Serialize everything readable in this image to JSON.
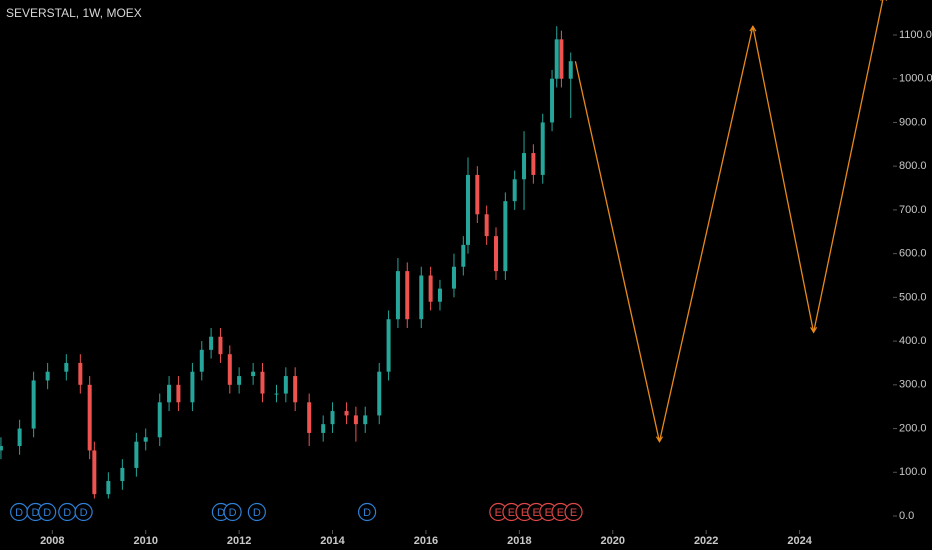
{
  "chart_data": {
    "type": "candlestick",
    "title": "SEVERSTAL, 1W, MOEX",
    "xlim": [
      2006.88,
      2026.0
    ],
    "ylim": [
      -32,
      1180
    ],
    "xticks": [
      2008,
      2010,
      2012,
      2014,
      2016,
      2018,
      2020,
      2022,
      2024
    ],
    "yticks": [
      {
        "value": 0,
        "label": "0.0"
      },
      {
        "value": 100,
        "label": "100.0"
      },
      {
        "value": 200,
        "label": "200.0"
      },
      {
        "value": 300,
        "label": "300.0"
      },
      {
        "value": 400,
        "label": "400.0"
      },
      {
        "value": 500,
        "label": "500.0"
      },
      {
        "value": 600,
        "label": "600.0"
      },
      {
        "value": 700,
        "label": "700.0"
      },
      {
        "value": 800,
        "label": "800.0"
      },
      {
        "value": 900,
        "label": "900.0"
      },
      {
        "value": 1000,
        "label": "1000.0"
      },
      {
        "value": 1100,
        "label": "1100.0"
      }
    ],
    "up_color": "#26a69a",
    "down_color": "#ef5350",
    "candles": {
      "x": [
        2006.9,
        2007.3,
        2007.6,
        2007.9,
        2008.3,
        2008.6,
        2008.8,
        2008.9,
        2009.2,
        2009.5,
        2009.8,
        2010.0,
        2010.3,
        2010.5,
        2010.7,
        2011.0,
        2011.2,
        2011.4,
        2011.6,
        2011.8,
        2012.0,
        2012.3,
        2012.5,
        2012.8,
        2013.0,
        2013.2,
        2013.5,
        2013.8,
        2014.0,
        2014.3,
        2014.5,
        2014.7,
        2015.0,
        2015.2,
        2015.4,
        2015.6,
        2015.9,
        2016.1,
        2016.3,
        2016.6,
        2016.8,
        2016.9,
        2017.1,
        2017.3,
        2017.5,
        2017.7,
        2017.9,
        2018.1,
        2018.3,
        2018.5,
        2018.7,
        2018.8,
        2018.9,
        2019.1
      ],
      "open": [
        150,
        160,
        200,
        310,
        330,
        350,
        300,
        150,
        50,
        80,
        110,
        170,
        180,
        260,
        300,
        260,
        330,
        380,
        410,
        370,
        300,
        320,
        330,
        280,
        280,
        320,
        260,
        190,
        210,
        240,
        230,
        210,
        230,
        330,
        450,
        560,
        450,
        550,
        490,
        520,
        570,
        620,
        780,
        690,
        640,
        560,
        720,
        770,
        830,
        780,
        900,
        1000,
        1090,
        1000
      ],
      "high": [
        180,
        220,
        330,
        350,
        370,
        370,
        320,
        170,
        100,
        130,
        190,
        200,
        280,
        320,
        320,
        350,
        400,
        430,
        430,
        390,
        340,
        350,
        350,
        300,
        340,
        340,
        280,
        230,
        260,
        260,
        250,
        250,
        350,
        470,
        590,
        580,
        570,
        570,
        540,
        600,
        640,
        820,
        800,
        710,
        660,
        740,
        790,
        880,
        850,
        920,
        1020,
        1120,
        1110,
        1060
      ],
      "low": [
        130,
        140,
        180,
        290,
        310,
        280,
        130,
        40,
        40,
        60,
        90,
        150,
        160,
        240,
        240,
        240,
        310,
        360,
        350,
        280,
        280,
        300,
        260,
        260,
        260,
        240,
        160,
        170,
        190,
        210,
        170,
        190,
        210,
        310,
        430,
        430,
        430,
        470,
        470,
        500,
        550,
        600,
        670,
        620,
        540,
        540,
        700,
        700,
        760,
        760,
        880,
        980,
        980,
        910
      ],
      "close": [
        160,
        200,
        310,
        330,
        350,
        300,
        150,
        50,
        80,
        110,
        170,
        180,
        260,
        300,
        260,
        330,
        380,
        410,
        370,
        300,
        320,
        330,
        280,
        280,
        320,
        260,
        190,
        210,
        240,
        230,
        210,
        230,
        330,
        450,
        560,
        450,
        550,
        490,
        520,
        570,
        620,
        780,
        690,
        640,
        560,
        720,
        770,
        830,
        780,
        900,
        1000,
        1090,
        1000,
        1040
      ]
    },
    "projection": {
      "color": "#e8891a",
      "x": [
        2019.2,
        2021.0,
        2023.0,
        2024.3,
        2025.8
      ],
      "values": [
        1040,
        170,
        1120,
        420,
        1190
      ]
    },
    "events": [
      {
        "x": 2007.29,
        "label": "D",
        "color": "#2f7fd6"
      },
      {
        "x": 2007.64,
        "label": "D",
        "color": "#2f7fd6"
      },
      {
        "x": 2007.89,
        "label": "D",
        "color": "#2f7fd6"
      },
      {
        "x": 2008.32,
        "label": "D",
        "color": "#2f7fd6"
      },
      {
        "x": 2008.67,
        "label": "D",
        "color": "#2f7fd6"
      },
      {
        "x": 2011.61,
        "label": "D",
        "color": "#2f7fd6"
      },
      {
        "x": 2011.86,
        "label": "D",
        "color": "#2f7fd6"
      },
      {
        "x": 2012.38,
        "label": "D",
        "color": "#2f7fd6"
      },
      {
        "x": 2014.74,
        "label": "D",
        "color": "#2f7fd6"
      },
      {
        "x": 2017.55,
        "label": "E",
        "color": "#e04848"
      },
      {
        "x": 2017.83,
        "label": "E",
        "color": "#e04848"
      },
      {
        "x": 2018.11,
        "label": "E",
        "color": "#e04848"
      },
      {
        "x": 2018.36,
        "label": "E",
        "color": "#e04848"
      },
      {
        "x": 2018.62,
        "label": "E",
        "color": "#e04848"
      },
      {
        "x": 2018.88,
        "label": "E",
        "color": "#e04848"
      },
      {
        "x": 2019.16,
        "label": "E",
        "color": "#e04848"
      }
    ]
  }
}
